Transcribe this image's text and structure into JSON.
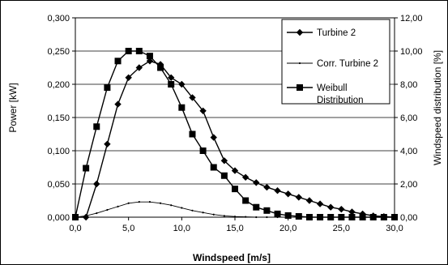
{
  "chart_data": {
    "type": "line",
    "xlabel": "Windspeed [m/s]",
    "ylabel_left": "Power [kW]",
    "ylabel_right": "Windspeed distribution [%]",
    "xlim": [
      0,
      30
    ],
    "ylim_left": [
      0,
      0.3
    ],
    "ylim_right": [
      0,
      12
    ],
    "x_ticks": [
      "0,0",
      "5,0",
      "10,0",
      "15,0",
      "20,0",
      "25,0",
      "30,0"
    ],
    "y_left_ticks": [
      "0,000",
      "0,050",
      "0,100",
      "0,150",
      "0,200",
      "0,250",
      "0,300"
    ],
    "y_right_ticks": [
      "0,00",
      "2,00",
      "4,00",
      "6,00",
      "8,00",
      "10,00",
      "12,00"
    ],
    "grid": "horizontal",
    "legend_position": "top-right",
    "colors": {
      "series": "#000000",
      "grid": "#000000",
      "background": "#ffffff"
    },
    "series": [
      {
        "name": "Turbine 2",
        "axis": "left",
        "marker": "diamond",
        "x": [
          0,
          1,
          2,
          3,
          4,
          5,
          6,
          7,
          8,
          9,
          10,
          11,
          12,
          13,
          14,
          15,
          16,
          17,
          18,
          19,
          20,
          21,
          22,
          23,
          24,
          25,
          26,
          27,
          28,
          29,
          30
        ],
        "values": [
          0,
          0,
          0.05,
          0.11,
          0.17,
          0.21,
          0.225,
          0.235,
          0.23,
          0.21,
          0.2,
          0.18,
          0.16,
          0.12,
          0.085,
          0.07,
          0.06,
          0.052,
          0.045,
          0.04,
          0.035,
          0.03,
          0.025,
          0.02,
          0.015,
          0.012,
          0.008,
          0.005,
          0.002,
          0.001,
          0
        ]
      },
      {
        "name": "Corr. Turbine 2",
        "axis": "left",
        "marker": "dot",
        "x": [
          0,
          1,
          2,
          3,
          4,
          5,
          6,
          7,
          8,
          9,
          10,
          11,
          12,
          13,
          14,
          15,
          16,
          17,
          18,
          19,
          20,
          21,
          22,
          23,
          24,
          25,
          26,
          27,
          28,
          29,
          30
        ],
        "values": [
          0,
          0.002,
          0.006,
          0.011,
          0.016,
          0.021,
          0.023,
          0.023,
          0.021,
          0.018,
          0.014,
          0.01,
          0.007,
          0.004,
          0.002,
          0.001,
          0.0005,
          0,
          0,
          0,
          0,
          0,
          0,
          0,
          0,
          0,
          0,
          0,
          0,
          0,
          0
        ]
      },
      {
        "name": "Weibull\nDistribution",
        "axis": "right",
        "marker": "square",
        "x": [
          0,
          1,
          2,
          3,
          4,
          5,
          6,
          7,
          8,
          9,
          10,
          11,
          12,
          13,
          14,
          15,
          16,
          17,
          18,
          19,
          20,
          21,
          22,
          23,
          24,
          25,
          26,
          27,
          28,
          29,
          30
        ],
        "values": [
          0,
          2.95,
          5.45,
          7.8,
          9.4,
          10.0,
          10.0,
          9.7,
          9.0,
          8.0,
          6.6,
          5.0,
          4.0,
          3.0,
          2.5,
          1.7,
          1.0,
          0.6,
          0.4,
          0.2,
          0.1,
          0.05,
          0,
          0,
          0,
          0,
          0,
          0,
          0,
          0,
          0
        ]
      }
    ]
  }
}
